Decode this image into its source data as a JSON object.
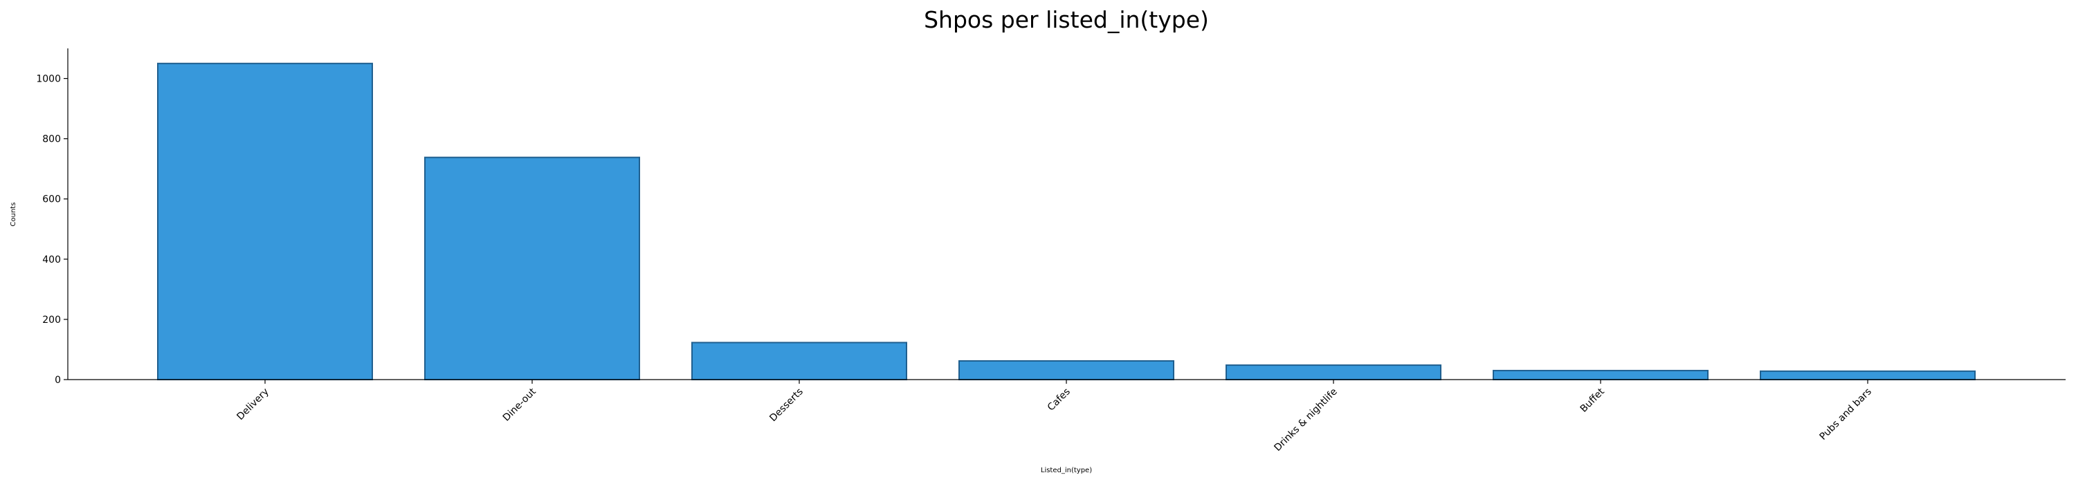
{
  "chart_data": {
    "type": "bar",
    "title": "Shpos per listed_in(type)",
    "xlabel": "Listed_in(type)",
    "ylabel": "Counts",
    "categories": [
      "Delivery",
      "Dine-out",
      "Desserts",
      "Cafes",
      "Drinks & nightlife",
      "Buffet",
      "Pubs and bars"
    ],
    "values": [
      1050,
      738,
      123,
      62,
      48,
      30,
      28
    ],
    "yticks": [
      0,
      200,
      400,
      600,
      800,
      1000
    ],
    "ylim": [
      0,
      1100
    ],
    "grid": false,
    "legend": "none",
    "bar_color": "#3798db",
    "bar_edge_color": "#1f5f8f"
  }
}
